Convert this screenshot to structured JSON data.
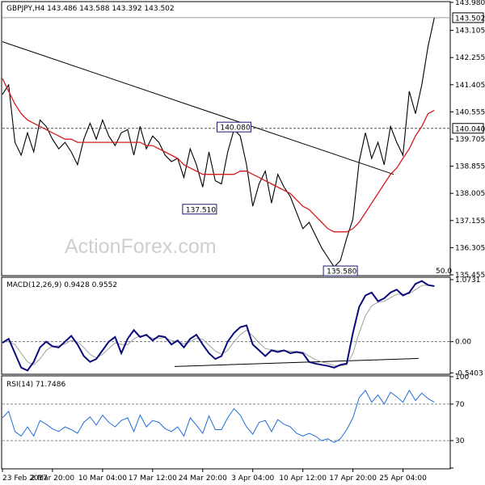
{
  "chart_data": [
    {
      "type": "line",
      "title": "GBPJPY,H4 143.486 143.588 143.392 143.502",
      "watermark": "ActionForex.com",
      "ylim": [
        135.455,
        143.98
      ],
      "yticks": [
        "143.980",
        "143.105",
        "142.255",
        "141.405",
        "140.555",
        "139.705",
        "138.855",
        "138.005",
        "137.155",
        "136.305",
        "135.455"
      ],
      "markers": [
        {
          "label": "143.502",
          "value": 143.502,
          "kind": "highlight",
          "dashed": false
        },
        {
          "label": "140.040",
          "value": 140.04,
          "kind": "highlight",
          "dashed": true
        }
      ],
      "annotations": [
        {
          "text": "140.080",
          "x_index": 74,
          "value": 140.08
        },
        {
          "text": "137.510",
          "x_index": 63,
          "value": 137.51
        },
        {
          "text": "135.580",
          "x_index": 108,
          "value": 135.58
        }
      ],
      "sma_label": "50.0",
      "trendline": {
        "from": [
          0,
          142.75
        ],
        "to": [
          125,
          138.6
        ]
      },
      "x": [
        0,
        2,
        4,
        6,
        8,
        10,
        12,
        14,
        16,
        18,
        20,
        22,
        24,
        26,
        28,
        30,
        32,
        34,
        36,
        38,
        40,
        42,
        44,
        46,
        48,
        50,
        52,
        54,
        56,
        58,
        60,
        62,
        64,
        66,
        68,
        70,
        72,
        74,
        76,
        78,
        80,
        82,
        84,
        86,
        88,
        90,
        92,
        94,
        96,
        98,
        100,
        102,
        104,
        106,
        108,
        110,
        112,
        114,
        116,
        118,
        120,
        122,
        124,
        126,
        128,
        130,
        132,
        134,
        136,
        138
      ],
      "series": [
        {
          "values": [
            141.1,
            141.4,
            139.6,
            139.2,
            139.9,
            139.3,
            140.3,
            140.1,
            139.7,
            139.4,
            139.6,
            139.3,
            138.9,
            139.7,
            140.2,
            139.7,
            140.3,
            139.8,
            139.5,
            139.9,
            140.0,
            139.2,
            140.1,
            139.4,
            139.8,
            139.6,
            139.2,
            139.0,
            139.1,
            138.5,
            139.4,
            138.9,
            138.2,
            139.3,
            138.4,
            138.3,
            139.3,
            140.0,
            139.8,
            138.9,
            137.6,
            138.3,
            138.7,
            137.7,
            138.6,
            138.2,
            137.9,
            137.4,
            136.9,
            137.1,
            136.7,
            136.3,
            136.0,
            135.7,
            135.9,
            136.6,
            137.2,
            139.0,
            139.9,
            139.1,
            139.6,
            138.9,
            140.1,
            139.6,
            139.2,
            141.2,
            140.5,
            141.4,
            142.6,
            143.5
          ]
        },
        {
          "values": [
            141.6,
            141.2,
            140.8,
            140.5,
            140.3,
            140.2,
            140.1,
            140.0,
            139.9,
            139.8,
            139.7,
            139.7,
            139.6,
            139.6,
            139.6,
            139.6,
            139.6,
            139.6,
            139.6,
            139.6,
            139.6,
            139.6,
            139.6,
            139.5,
            139.5,
            139.4,
            139.3,
            139.2,
            139.1,
            138.9,
            138.8,
            138.7,
            138.6,
            138.6,
            138.6,
            138.6,
            138.6,
            138.6,
            138.7,
            138.7,
            138.6,
            138.5,
            138.4,
            138.3,
            138.2,
            138.1,
            138.0,
            137.8,
            137.6,
            137.5,
            137.3,
            137.1,
            136.9,
            136.8,
            136.8,
            136.8,
            136.9,
            137.1,
            137.4,
            137.7,
            138.0,
            138.3,
            138.6,
            138.8,
            139.1,
            139.4,
            139.8,
            140.1,
            140.5,
            140.6
          ]
        }
      ]
    },
    {
      "type": "line",
      "title": "MACD(12,26,9) 0.9428 0.9552",
      "ylim": [
        -0.55,
        1.1
      ],
      "yticks": [
        "1.0731",
        "0.00",
        "-0.5403"
      ],
      "trendline": {
        "from": [
          55,
          -0.43
        ],
        "to": [
          133,
          -0.29
        ]
      },
      "x": [
        0,
        2,
        4,
        6,
        8,
        10,
        12,
        14,
        16,
        18,
        20,
        22,
        24,
        26,
        28,
        30,
        32,
        34,
        36,
        38,
        40,
        42,
        44,
        46,
        48,
        50,
        52,
        54,
        56,
        58,
        60,
        62,
        64,
        66,
        68,
        70,
        72,
        74,
        76,
        78,
        80,
        82,
        84,
        86,
        88,
        90,
        92,
        94,
        96,
        98,
        100,
        102,
        104,
        106,
        108,
        110,
        112,
        114,
        116,
        118,
        120,
        122,
        124,
        126,
        128,
        130,
        132,
        134,
        136,
        138
      ],
      "series": [
        {
          "values": [
            -0.02,
            0.05,
            -0.2,
            -0.45,
            -0.5,
            -0.35,
            -0.1,
            0.0,
            -0.08,
            -0.1,
            0.0,
            0.1,
            -0.05,
            -0.25,
            -0.35,
            -0.3,
            -0.15,
            0.0,
            0.08,
            -0.2,
            0.05,
            0.2,
            0.08,
            0.12,
            0.02,
            0.1,
            0.08,
            -0.05,
            0.02,
            -0.1,
            0.05,
            0.12,
            -0.05,
            -0.2,
            -0.3,
            -0.25,
            0.0,
            0.15,
            0.25,
            0.28,
            -0.05,
            -0.15,
            -0.25,
            -0.15,
            -0.18,
            -0.15,
            -0.2,
            -0.18,
            -0.2,
            -0.35,
            -0.38,
            -0.4,
            -0.42,
            -0.45,
            -0.4,
            -0.38,
            0.15,
            0.6,
            0.8,
            0.85,
            0.7,
            0.75,
            0.85,
            0.9,
            0.8,
            0.85,
            1.0,
            1.05,
            0.98,
            0.96
          ]
        },
        {
          "values": [
            0.0,
            0.0,
            -0.05,
            -0.2,
            -0.35,
            -0.4,
            -0.3,
            -0.15,
            -0.08,
            -0.07,
            -0.04,
            0.02,
            0.0,
            -0.1,
            -0.22,
            -0.28,
            -0.22,
            -0.12,
            -0.02,
            -0.05,
            -0.05,
            0.05,
            0.1,
            0.1,
            0.06,
            0.06,
            0.07,
            0.02,
            0.0,
            -0.04,
            0.0,
            0.06,
            0.04,
            -0.06,
            -0.16,
            -0.22,
            -0.15,
            0.0,
            0.12,
            0.2,
            0.1,
            -0.02,
            -0.12,
            -0.14,
            -0.15,
            -0.15,
            -0.17,
            -0.17,
            -0.18,
            -0.25,
            -0.31,
            -0.35,
            -0.38,
            -0.41,
            -0.42,
            -0.4,
            -0.2,
            0.15,
            0.45,
            0.62,
            0.68,
            0.7,
            0.76,
            0.82,
            0.82,
            0.83,
            0.9,
            0.97,
            0.98,
            0.96
          ]
        }
      ]
    },
    {
      "type": "line",
      "title": "RSI(14) 71.7486",
      "ylim": [
        0,
        100
      ],
      "yticks": [
        "100",
        "70",
        "30",
        "0"
      ],
      "x": [
        0,
        2,
        4,
        6,
        8,
        10,
        12,
        14,
        16,
        18,
        20,
        22,
        24,
        26,
        28,
        30,
        32,
        34,
        36,
        38,
        40,
        42,
        44,
        46,
        48,
        50,
        52,
        54,
        56,
        58,
        60,
        62,
        64,
        66,
        68,
        70,
        72,
        74,
        76,
        78,
        80,
        82,
        84,
        86,
        88,
        90,
        92,
        94,
        96,
        98,
        100,
        102,
        104,
        106,
        108,
        110,
        112,
        114,
        116,
        118,
        120,
        122,
        124,
        126,
        128,
        130,
        132,
        134,
        136,
        138
      ],
      "series": [
        {
          "values": [
            55,
            62,
            40,
            35,
            45,
            35,
            52,
            48,
            43,
            40,
            45,
            42,
            38,
            50,
            56,
            47,
            58,
            50,
            45,
            52,
            55,
            40,
            58,
            45,
            52,
            50,
            43,
            40,
            45,
            35,
            55,
            47,
            38,
            57,
            42,
            42,
            55,
            65,
            58,
            45,
            37,
            50,
            52,
            40,
            53,
            48,
            45,
            38,
            35,
            38,
            35,
            30,
            32,
            28,
            32,
            42,
            55,
            77,
            85,
            72,
            80,
            70,
            83,
            78,
            72,
            85,
            74,
            82,
            76,
            72
          ]
        }
      ]
    }
  ],
  "x_axis": {
    "labels": [
      "23 Feb 2017",
      "2 Mar 20:00",
      "10 Mar 04:00",
      "17 Mar 12:00",
      "24 Mar 20:00",
      "3 Apr 04:00",
      "10 Apr 12:00",
      "17 Apr 20:00",
      "25 Apr 04:00"
    ],
    "label_index": [
      0,
      16,
      32,
      48,
      64,
      80,
      96,
      112,
      128
    ]
  },
  "colors": {
    "price": "#000000",
    "sma": "#d7191c",
    "macd": "#0a0a7a",
    "signal": "#a0a0a0",
    "rsi": "#1e6fd6",
    "trend": "#000000"
  }
}
